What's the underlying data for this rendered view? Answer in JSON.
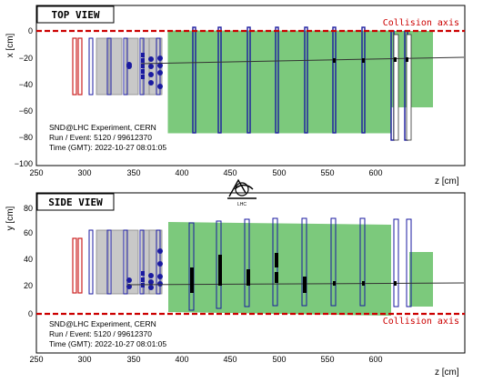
{
  "panels": [
    {
      "id": "top",
      "title": "TOP VIEW",
      "y_label": "x [cm]",
      "x_label": "z [cm]",
      "collision_label": "Collision axis",
      "yticks": [
        "0",
        "−20",
        "−40",
        "−60",
        "−80",
        "−100"
      ],
      "xticks": [
        "250",
        "300",
        "350",
        "400",
        "450",
        "500",
        "550",
        "600"
      ],
      "info": [
        "SND@LHC Experiment, CERN",
        "Run / Event: 5120 / 99612370",
        "Time (GMT): 2022-10-27 08:01:05"
      ]
    },
    {
      "id": "side",
      "title": "SIDE VIEW",
      "y_label": "y [cm]",
      "x_label": "z [cm]",
      "collision_label": "Collision axis",
      "yticks": [
        "80",
        "60",
        "40",
        "20",
        "0"
      ],
      "xticks": [
        "250",
        "300",
        "350",
        "400",
        "450",
        "500",
        "550",
        "600"
      ],
      "info": [
        "SND@LHC Experiment, CERN",
        "Run / Event: 5120 / 99612370",
        "Time (GMT): 2022-10-27 08:01:05"
      ]
    }
  ],
  "logo_text": "LHC",
  "colors": {
    "veto": "#cc2222",
    "target": "#c8c8c8",
    "scifi": "#1a1aa0",
    "muon": "#7cc97c",
    "collision_axis": "#cc0000",
    "track": "#333333"
  }
}
